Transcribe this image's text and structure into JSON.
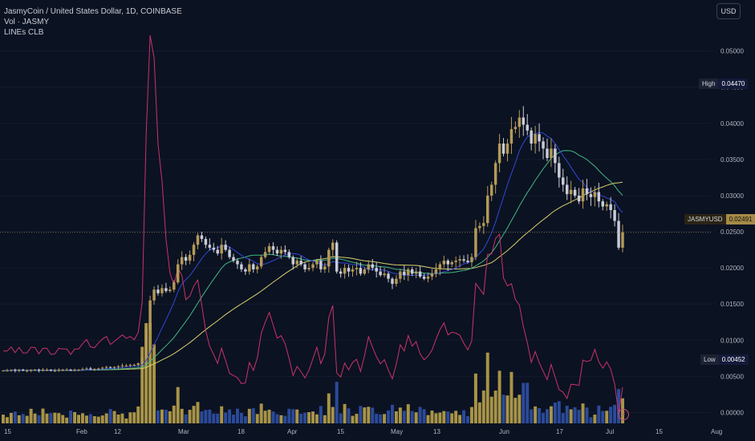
{
  "header": {
    "symbol_line": "JasmyCoin / United States Dollar, 1D, COINBASE",
    "volume_line": "Vol · JASMY",
    "indicator_line": "LINEs CLB"
  },
  "currency_button": "USD",
  "flags": {
    "high": {
      "label": "High",
      "value": "0.04470"
    },
    "current": {
      "label": "JASMYUSD",
      "value": "0.02491"
    },
    "low": {
      "label": "Low",
      "value": "0.00452"
    }
  },
  "colors": {
    "background": "#0b1222",
    "bull": "#b59a58",
    "bear": "#c8ccd6",
    "vol_bull": "#a89447",
    "vol_bear": "#2b4a9a",
    "line_yellow": "#d8d26a",
    "line_green": "#42b884",
    "line_blue": "#3347d6",
    "line_pink": "#c8336a"
  },
  "chart_data": {
    "type": "candlestick",
    "title": "JasmyCoin / United States Dollar, 1D, COINBASE",
    "x_tick_labels": [
      "15",
      "Feb",
      "12",
      "Mar",
      "18",
      "Apr",
      "15",
      "May",
      "13",
      "Jun",
      "17",
      "Jul",
      "15",
      "Aug"
    ],
    "y_tick_labels": [
      "0.05000",
      "0.04500",
      "0.04000",
      "0.03500",
      "0.03000",
      "0.02500",
      "0.02000",
      "0.01500",
      "0.01000",
      "0.00500",
      "0.00000"
    ],
    "ylim": [
      -0.0015,
      0.0555
    ],
    "high": 0.0447,
    "low": 0.00452,
    "last": 0.02491,
    "close_series": [
      0.0058,
      0.0058,
      0.0059,
      0.0058,
      0.0059,
      0.0058,
      0.0058,
      0.0059,
      0.0059,
      0.0058,
      0.0059,
      0.0059,
      0.0058,
      0.0058,
      0.0059,
      0.0059,
      0.0059,
      0.0058,
      0.0059,
      0.0059,
      0.006,
      0.0061,
      0.006,
      0.006,
      0.0061,
      0.0062,
      0.0063,
      0.0062,
      0.0063,
      0.0064,
      0.0065,
      0.0065,
      0.0066,
      0.0066,
      0.0068,
      0.0075,
      0.0115,
      0.0155,
      0.017,
      0.0165,
      0.0172,
      0.0168,
      0.017,
      0.018,
      0.0205,
      0.0215,
      0.021,
      0.0218,
      0.0232,
      0.0245,
      0.024,
      0.0232,
      0.0228,
      0.0225,
      0.022,
      0.0232,
      0.0225,
      0.0215,
      0.021,
      0.0205,
      0.0198,
      0.0195,
      0.0205,
      0.0198,
      0.0202,
      0.0215,
      0.0222,
      0.023,
      0.0225,
      0.022,
      0.0225,
      0.0222,
      0.0215,
      0.0205,
      0.021,
      0.0205,
      0.0198,
      0.02,
      0.0205,
      0.021,
      0.0198,
      0.0202,
      0.0225,
      0.0235,
      0.0195,
      0.0192,
      0.02,
      0.0195,
      0.0198,
      0.02,
      0.0192,
      0.0198,
      0.0205,
      0.02,
      0.0195,
      0.019,
      0.0192,
      0.0185,
      0.0178,
      0.0185,
      0.0195,
      0.019,
      0.0198,
      0.0192,
      0.0195,
      0.0188,
      0.0185,
      0.0188,
      0.0192,
      0.0198,
      0.0205,
      0.021,
      0.0205,
      0.0208,
      0.021,
      0.0212,
      0.021,
      0.0208,
      0.0215,
      0.0255,
      0.0258,
      0.0262,
      0.03,
      0.0315,
      0.0345,
      0.0372,
      0.0358,
      0.0372,
      0.0392,
      0.0395,
      0.0408,
      0.0398,
      0.039,
      0.0372,
      0.0385,
      0.0375,
      0.0365,
      0.0352,
      0.0365,
      0.0345,
      0.0325,
      0.0315,
      0.0302,
      0.0308,
      0.03,
      0.0292,
      0.031,
      0.0302,
      0.0298,
      0.0305,
      0.0292,
      0.0285,
      0.0288,
      0.028,
      0.0265,
      0.0228,
      0.0249
    ]
  }
}
